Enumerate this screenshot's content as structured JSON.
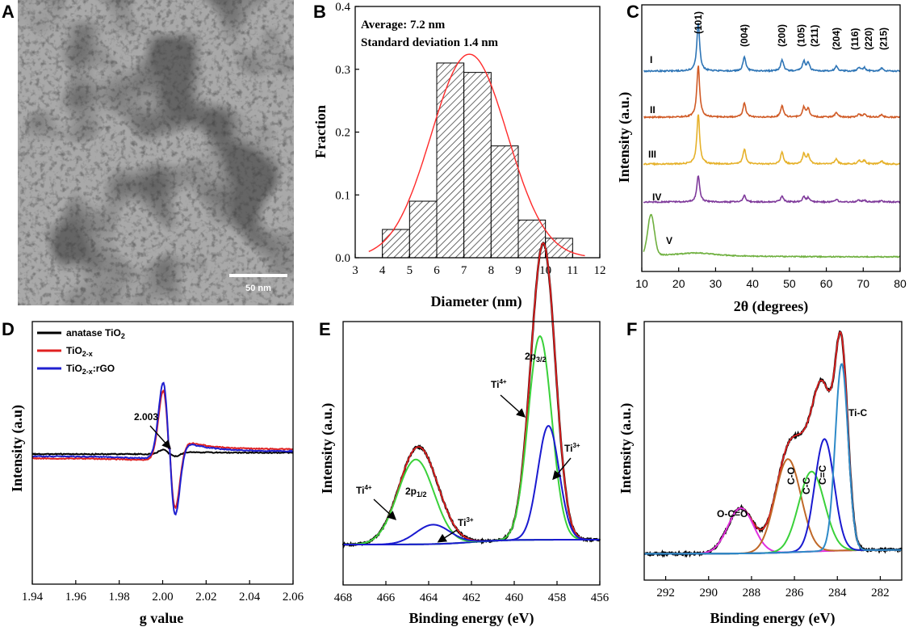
{
  "figure": {
    "panel_labels": [
      "A",
      "B",
      "C",
      "D",
      "E",
      "F"
    ],
    "panel_a": {
      "scale_bar_label": "50 nm"
    }
  },
  "chart_data": [
    {
      "panel": "B",
      "type": "bar",
      "xlabel": "Diameter (nm)",
      "ylabel": "Fraction",
      "xlim": [
        3,
        12
      ],
      "ylim": [
        0,
        0.4
      ],
      "xticks": [
        "3",
        "4",
        "5",
        "6",
        "7",
        "8",
        "9",
        "10",
        "11",
        "12"
      ],
      "yticks": [
        "0.0",
        "0.1",
        "0.2",
        "0.3",
        "0.4"
      ],
      "bins": [
        [
          4,
          5
        ],
        [
          5,
          6
        ],
        [
          6,
          7
        ],
        [
          7,
          8
        ],
        [
          8,
          9
        ],
        [
          9,
          10
        ],
        [
          10,
          11
        ]
      ],
      "values": [
        0.045,
        0.09,
        0.31,
        0.295,
        0.178,
        0.06,
        0.031
      ],
      "fit": {
        "mean": 7.2,
        "peak": 0.324,
        "sigma": 1.4,
        "color": "#ff2a2a"
      },
      "annotations": [
        "Average: 7.2 nm",
        "Standard deviation 1.4 nm"
      ]
    },
    {
      "panel": "C",
      "type": "line",
      "xlabel": "2θ (degrees)",
      "ylabel": "Intensity (a.u.)",
      "xlim": [
        10,
        80
      ],
      "xticks": [
        "10",
        "20",
        "30",
        "40",
        "50",
        "60",
        "70",
        "80"
      ],
      "peak_positions": [
        25.3,
        37.8,
        48.0,
        53.9,
        55.1,
        62.7,
        68.8,
        70.3,
        75.0
      ],
      "peak_labels": [
        "(101)",
        "(004)",
        "(200)",
        "(105)",
        "(211)",
        "(204)",
        "(116)",
        "(220)",
        "(215)"
      ],
      "series": [
        {
          "name": "I",
          "color": "#2e75b6",
          "offset": 4,
          "peak_heights": [
            1.0,
            0.3,
            0.24,
            0.2,
            0.17,
            0.1,
            0.07,
            0.07,
            0.06
          ]
        },
        {
          "name": "II",
          "color": "#d05a25",
          "offset": 3,
          "peak_heights": [
            1.0,
            0.28,
            0.22,
            0.19,
            0.16,
            0.09,
            0.06,
            0.06,
            0.05
          ]
        },
        {
          "name": "III",
          "color": "#e6b12a",
          "offset": 2,
          "peak_heights": [
            1.0,
            0.3,
            0.24,
            0.2,
            0.17,
            0.1,
            0.07,
            0.07,
            0.06
          ]
        },
        {
          "name": "IV",
          "color": "#7f3a9b",
          "offset": 1,
          "peak_heights": [
            0.6,
            0.15,
            0.13,
            0.11,
            0.09,
            0.06,
            0.04,
            0.04,
            0.03
          ]
        },
        {
          "name": "V",
          "color": "#6fb03f",
          "offset": 0,
          "graphene_oxide_peak": 12.5
        }
      ]
    },
    {
      "panel": "D",
      "type": "line",
      "xlabel": "g value",
      "ylabel": "Intensity (a.u)",
      "xlim": [
        1.94,
        2.06
      ],
      "xticks": [
        "1.94",
        "1.96",
        "1.98",
        "2.00",
        "2.02",
        "2.04",
        "2.06"
      ],
      "annotation": "2.003",
      "series": [
        {
          "name": "anatase TiO",
          "sub": "2",
          "color": "#000000",
          "amplitude": 0.06,
          "baseline_left": 0.0,
          "baseline_right": 0.02
        },
        {
          "name": "TiO",
          "sub": "2-x",
          "color": "#e02020",
          "amplitude": 1.0,
          "baseline_left": -0.06,
          "baseline_right": 0.07
        },
        {
          "name": "TiO",
          "sub": "2-x",
          "suffix": ":rGO",
          "color": "#2020d0",
          "amplitude": 1.1,
          "baseline_left": -0.03,
          "baseline_right": 0.04
        }
      ]
    },
    {
      "panel": "E",
      "type": "line",
      "xlabel": "Binding energy (eV)",
      "ylabel": "Intensity (a.u.)",
      "xlim": [
        468,
        456
      ],
      "xticks": [
        "468",
        "466",
        "464",
        "462",
        "460",
        "458",
        "456"
      ],
      "components": [
        {
          "name": "Ti4+ 2p3/2",
          "center": 458.8,
          "height": 0.84,
          "width": 0.55,
          "color": "#3ad13a"
        },
        {
          "name": "Ti3+ 2p3/2",
          "center": 458.4,
          "height": 0.47,
          "width": 0.5,
          "color": "#1a1ad0"
        },
        {
          "name": "Ti4+ 2p1/2",
          "center": 464.6,
          "height": 0.35,
          "width": 0.85,
          "color": "#3ad13a"
        },
        {
          "name": "Ti3+ 2p1/2",
          "center": 463.8,
          "height": 0.08,
          "width": 0.8,
          "color": "#1a1ad0"
        }
      ],
      "annotations": {
        "p32": "2p",
        "p32_sub": "3/2",
        "p12": "2p",
        "p12_sub": "1/2",
        "ti4_a": "Ti",
        "ti4_a_sup": "4+",
        "ti4_b": "Ti",
        "ti4_b_sup": "4+",
        "ti3_a": "Ti",
        "ti3_a_sup": "3+",
        "ti3_b": "Ti",
        "ti3_b_sup": "3+"
      }
    },
    {
      "panel": "F",
      "type": "line",
      "xlabel": "Binding energy (eV)",
      "ylabel": "Intensity (a.u.)",
      "xlim": [
        293,
        281
      ],
      "xticks": [
        "292",
        "290",
        "288",
        "286",
        "284",
        "282"
      ],
      "components": [
        {
          "name": "O-C=O",
          "center": 288.5,
          "height": 0.17,
          "width": 0.6,
          "color": "#e030e0"
        },
        {
          "name": "C-O",
          "center": 286.3,
          "height": 0.35,
          "width": 0.6,
          "color": "#c06828"
        },
        {
          "name": "C-C",
          "center": 285.2,
          "height": 0.3,
          "width": 0.6,
          "color": "#3ad13a"
        },
        {
          "name": "C=C",
          "center": 284.6,
          "height": 0.42,
          "width": 0.45,
          "color": "#1a1ad0"
        },
        {
          "name": "Ti-C",
          "center": 283.8,
          "height": 0.7,
          "width": 0.3,
          "color": "#2e8ac8"
        }
      ],
      "labels": [
        "O-C=O",
        "C-O",
        "C-C",
        "C=C",
        "Ti-C"
      ]
    }
  ]
}
